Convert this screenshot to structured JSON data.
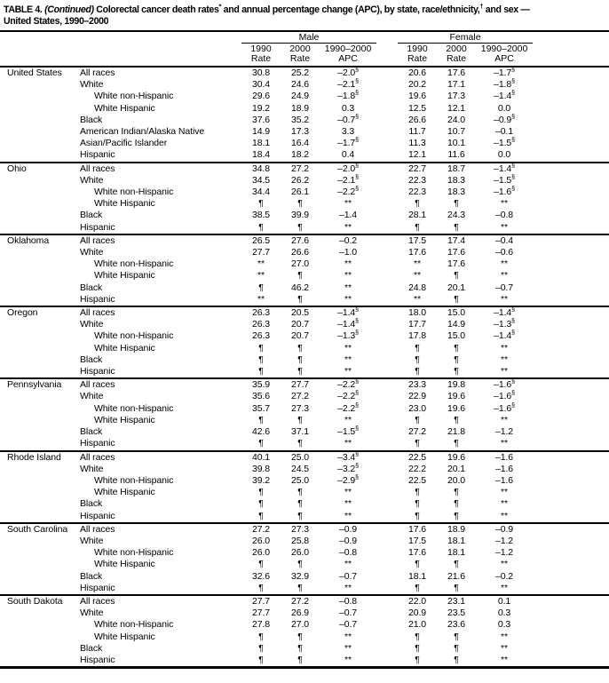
{
  "title": {
    "line1_parts": [
      {
        "t": "TABLE 4. ",
        "style": "plain"
      },
      {
        "t": "(Continued)",
        "style": "italic"
      },
      {
        "t": " Colorectal cancer death rates",
        "style": "plain"
      },
      {
        "t": "*",
        "style": "sup"
      },
      {
        "t": " and annual percentage change (APC), by state, race/ethnicity,",
        "style": "plain"
      },
      {
        "t": "†",
        "style": "sup"
      },
      {
        "t": " and sex —",
        "style": "plain"
      }
    ],
    "line2": "United States, 1990–2000"
  },
  "header": {
    "male_label": "Male",
    "female_label": "Female",
    "cols": [
      {
        "line1": "1990",
        "line2": "Rate"
      },
      {
        "line1": "2000",
        "line2": "Rate"
      },
      {
        "line1": "1990–2000",
        "line2": "APC"
      }
    ]
  },
  "states": [
    {
      "name": "United States",
      "rows": [
        {
          "label": "All races",
          "indent": false,
          "cells": [
            "30.8",
            "25.2",
            "–2.0§",
            "20.6",
            "17.6",
            "–1.7§"
          ]
        },
        {
          "label": "White",
          "indent": false,
          "cells": [
            "30.4",
            "24.6",
            "–2.1§",
            "20.2",
            "17.1",
            "–1.8§"
          ]
        },
        {
          "label": "White non-Hispanic",
          "indent": true,
          "cells": [
            "29.6",
            "24.9",
            "–1.8§",
            "19.6",
            "17.3",
            "–1.4§"
          ]
        },
        {
          "label": "White Hispanic",
          "indent": true,
          "cells": [
            "19.2",
            "18.9",
            "0.3",
            "12.5",
            "12.1",
            "0.0"
          ]
        },
        {
          "label": "Black",
          "indent": false,
          "cells": [
            "37.6",
            "35.2",
            "–0.7§",
            "26.6",
            "24.0",
            "–0.9§"
          ]
        },
        {
          "label": "American Indian/Alaska Native",
          "indent": false,
          "cells": [
            "14.9",
            "17.3",
            "3.3",
            "11.7",
            "10.7",
            "–0.1"
          ]
        },
        {
          "label": "Asian/Pacific Islander",
          "indent": false,
          "cells": [
            "18.1",
            "16.4",
            "–1.7§",
            "11.3",
            "10.1",
            "–1.5§"
          ]
        },
        {
          "label": "Hispanic",
          "indent": false,
          "cells": [
            "18.4",
            "18.2",
            "0.4",
            "12.1",
            "11.6",
            "0.0"
          ]
        }
      ]
    },
    {
      "name": "Ohio",
      "rows": [
        {
          "label": "All races",
          "indent": false,
          "cells": [
            "34.8",
            "27.2",
            "–2.0§",
            "22.7",
            "18.7",
            "–1.4§"
          ]
        },
        {
          "label": "White",
          "indent": false,
          "cells": [
            "34.5",
            "26.2",
            "–2.1§",
            "22.3",
            "18.3",
            "–1.5§"
          ]
        },
        {
          "label": "White non-Hispanic",
          "indent": true,
          "cells": [
            "34.4",
            "26.1",
            "–2.2§",
            "22.3",
            "18.3",
            "–1.6§"
          ]
        },
        {
          "label": "White Hispanic",
          "indent": true,
          "cells": [
            "¶",
            "¶",
            "**",
            "¶",
            "¶",
            "**"
          ]
        },
        {
          "label": "Black",
          "indent": false,
          "cells": [
            "38.5",
            "39.9",
            "–1.4",
            "28.1",
            "24.3",
            "–0.8"
          ]
        },
        {
          "label": "Hispanic",
          "indent": false,
          "cells": [
            "¶",
            "¶",
            "**",
            "¶",
            "¶",
            "**"
          ]
        }
      ]
    },
    {
      "name": "Oklahoma",
      "rows": [
        {
          "label": "All races",
          "indent": false,
          "cells": [
            "26.5",
            "27.6",
            "–0.2",
            "17.5",
            "17.4",
            "–0.4"
          ]
        },
        {
          "label": "White",
          "indent": false,
          "cells": [
            "27.7",
            "26.6",
            "–1.0",
            "17.6",
            "17.6",
            "–0.6"
          ]
        },
        {
          "label": "White non-Hispanic",
          "indent": true,
          "cells": [
            "**",
            "27.0",
            "**",
            "**",
            "17.6",
            "**"
          ]
        },
        {
          "label": "White Hispanic",
          "indent": true,
          "cells": [
            "**",
            "¶",
            "**",
            "**",
            "¶",
            "**"
          ]
        },
        {
          "label": "Black",
          "indent": false,
          "cells": [
            "¶",
            "46.2",
            "**",
            "24.8",
            "20.1",
            "–0.7"
          ]
        },
        {
          "label": "Hispanic",
          "indent": false,
          "cells": [
            "**",
            "¶",
            "**",
            "**",
            "¶",
            "**"
          ]
        }
      ]
    },
    {
      "name": "Oregon",
      "rows": [
        {
          "label": "All races",
          "indent": false,
          "cells": [
            "26.3",
            "20.5",
            "–1.4§",
            "18.0",
            "15.0",
            "–1.4§"
          ]
        },
        {
          "label": "White",
          "indent": false,
          "cells": [
            "26.3",
            "20.7",
            "–1.4§",
            "17.7",
            "14.9",
            "–1.3§"
          ]
        },
        {
          "label": "White non-Hispanic",
          "indent": true,
          "cells": [
            "26.3",
            "20.7",
            "–1.3§",
            "17.8",
            "15.0",
            "–1.4§"
          ]
        },
        {
          "label": "White Hispanic",
          "indent": true,
          "cells": [
            "¶",
            "¶",
            "**",
            "¶",
            "¶",
            "**"
          ]
        },
        {
          "label": "Black",
          "indent": false,
          "cells": [
            "¶",
            "¶",
            "**",
            "¶",
            "¶",
            "**"
          ]
        },
        {
          "label": "Hispanic",
          "indent": false,
          "cells": [
            "¶",
            "¶",
            "**",
            "¶",
            "¶",
            "**"
          ]
        }
      ]
    },
    {
      "name": "Pennsylvania",
      "rows": [
        {
          "label": "All races",
          "indent": false,
          "cells": [
            "35.9",
            "27.7",
            "–2.2§",
            "23.3",
            "19.8",
            "–1.6§"
          ]
        },
        {
          "label": "White",
          "indent": false,
          "cells": [
            "35.6",
            "27.2",
            "–2.2§",
            "22.9",
            "19.6",
            "–1.6§"
          ]
        },
        {
          "label": "White non-Hispanic",
          "indent": true,
          "cells": [
            "35.7",
            "27.3",
            "–2.2§",
            "23.0",
            "19.6",
            "–1.6§"
          ]
        },
        {
          "label": "White Hispanic",
          "indent": true,
          "cells": [
            "¶",
            "¶",
            "**",
            "¶",
            "¶",
            "**"
          ]
        },
        {
          "label": "Black",
          "indent": false,
          "cells": [
            "42.6",
            "37.1",
            "–1.5§",
            "27.2",
            "21.8",
            "–1.2"
          ]
        },
        {
          "label": "Hispanic",
          "indent": false,
          "cells": [
            "¶",
            "¶",
            "**",
            "¶",
            "¶",
            "**"
          ]
        }
      ]
    },
    {
      "name": "Rhode Island",
      "rows": [
        {
          "label": "All races",
          "indent": false,
          "cells": [
            "40.1",
            "25.0",
            "–3.4§",
            "22.5",
            "19.6",
            "–1.6"
          ]
        },
        {
          "label": "White",
          "indent": false,
          "cells": [
            "39.8",
            "24.5",
            "–3.2§",
            "22.2",
            "20.1",
            "–1.6"
          ]
        },
        {
          "label": "White non-Hispanic",
          "indent": true,
          "cells": [
            "39.2",
            "25.0",
            "–2.9§",
            "22.5",
            "20.0",
            "–1.6"
          ]
        },
        {
          "label": "White Hispanic",
          "indent": true,
          "cells": [
            "¶",
            "¶",
            "**",
            "¶",
            "¶",
            "**"
          ]
        },
        {
          "label": "Black",
          "indent": false,
          "cells": [
            "¶",
            "¶",
            "**",
            "¶",
            "¶",
            "**"
          ]
        },
        {
          "label": "Hispanic",
          "indent": false,
          "cells": [
            "¶",
            "¶",
            "**",
            "¶",
            "¶",
            "**"
          ]
        }
      ]
    },
    {
      "name": "South Carolina",
      "rows": [
        {
          "label": "All races",
          "indent": false,
          "cells": [
            "27.2",
            "27.3",
            "–0.9",
            "17.6",
            "18.9",
            "–0.9"
          ]
        },
        {
          "label": "White",
          "indent": false,
          "cells": [
            "26.0",
            "25.8",
            "–0.9",
            "17.5",
            "18.1",
            "–1.2"
          ]
        },
        {
          "label": "White non-Hispanic",
          "indent": true,
          "cells": [
            "26.0",
            "26.0",
            "–0.8",
            "17.6",
            "18.1",
            "–1.2"
          ]
        },
        {
          "label": "White Hispanic",
          "indent": true,
          "cells": [
            "¶",
            "¶",
            "**",
            "¶",
            "¶",
            "**"
          ]
        },
        {
          "label": "Black",
          "indent": false,
          "cells": [
            "32.6",
            "32.9",
            "–0.7",
            "18.1",
            "21.6",
            "–0.2"
          ]
        },
        {
          "label": "Hispanic",
          "indent": false,
          "cells": [
            "¶",
            "¶",
            "**",
            "¶",
            "¶",
            "**"
          ]
        }
      ]
    },
    {
      "name": "South Dakota",
      "rows": [
        {
          "label": "All races",
          "indent": false,
          "cells": [
            "27.7",
            "27.2",
            "–0.8",
            "22.0",
            "23.1",
            "0.1"
          ]
        },
        {
          "label": "White",
          "indent": false,
          "cells": [
            "27.7",
            "26.9",
            "–0.7",
            "20.9",
            "23.5",
            "0.3"
          ]
        },
        {
          "label": "White non-Hispanic",
          "indent": true,
          "cells": [
            "27.8",
            "27.0",
            "–0.7",
            "21.0",
            "23.6",
            "0.3"
          ]
        },
        {
          "label": "White Hispanic",
          "indent": true,
          "cells": [
            "¶",
            "¶",
            "**",
            "¶",
            "¶",
            "**"
          ]
        },
        {
          "label": "Black",
          "indent": false,
          "cells": [
            "¶",
            "¶",
            "**",
            "¶",
            "¶",
            "**"
          ]
        },
        {
          "label": "Hispanic",
          "indent": false,
          "cells": [
            "¶",
            "¶",
            "**",
            "¶",
            "¶",
            "**"
          ]
        }
      ]
    }
  ]
}
